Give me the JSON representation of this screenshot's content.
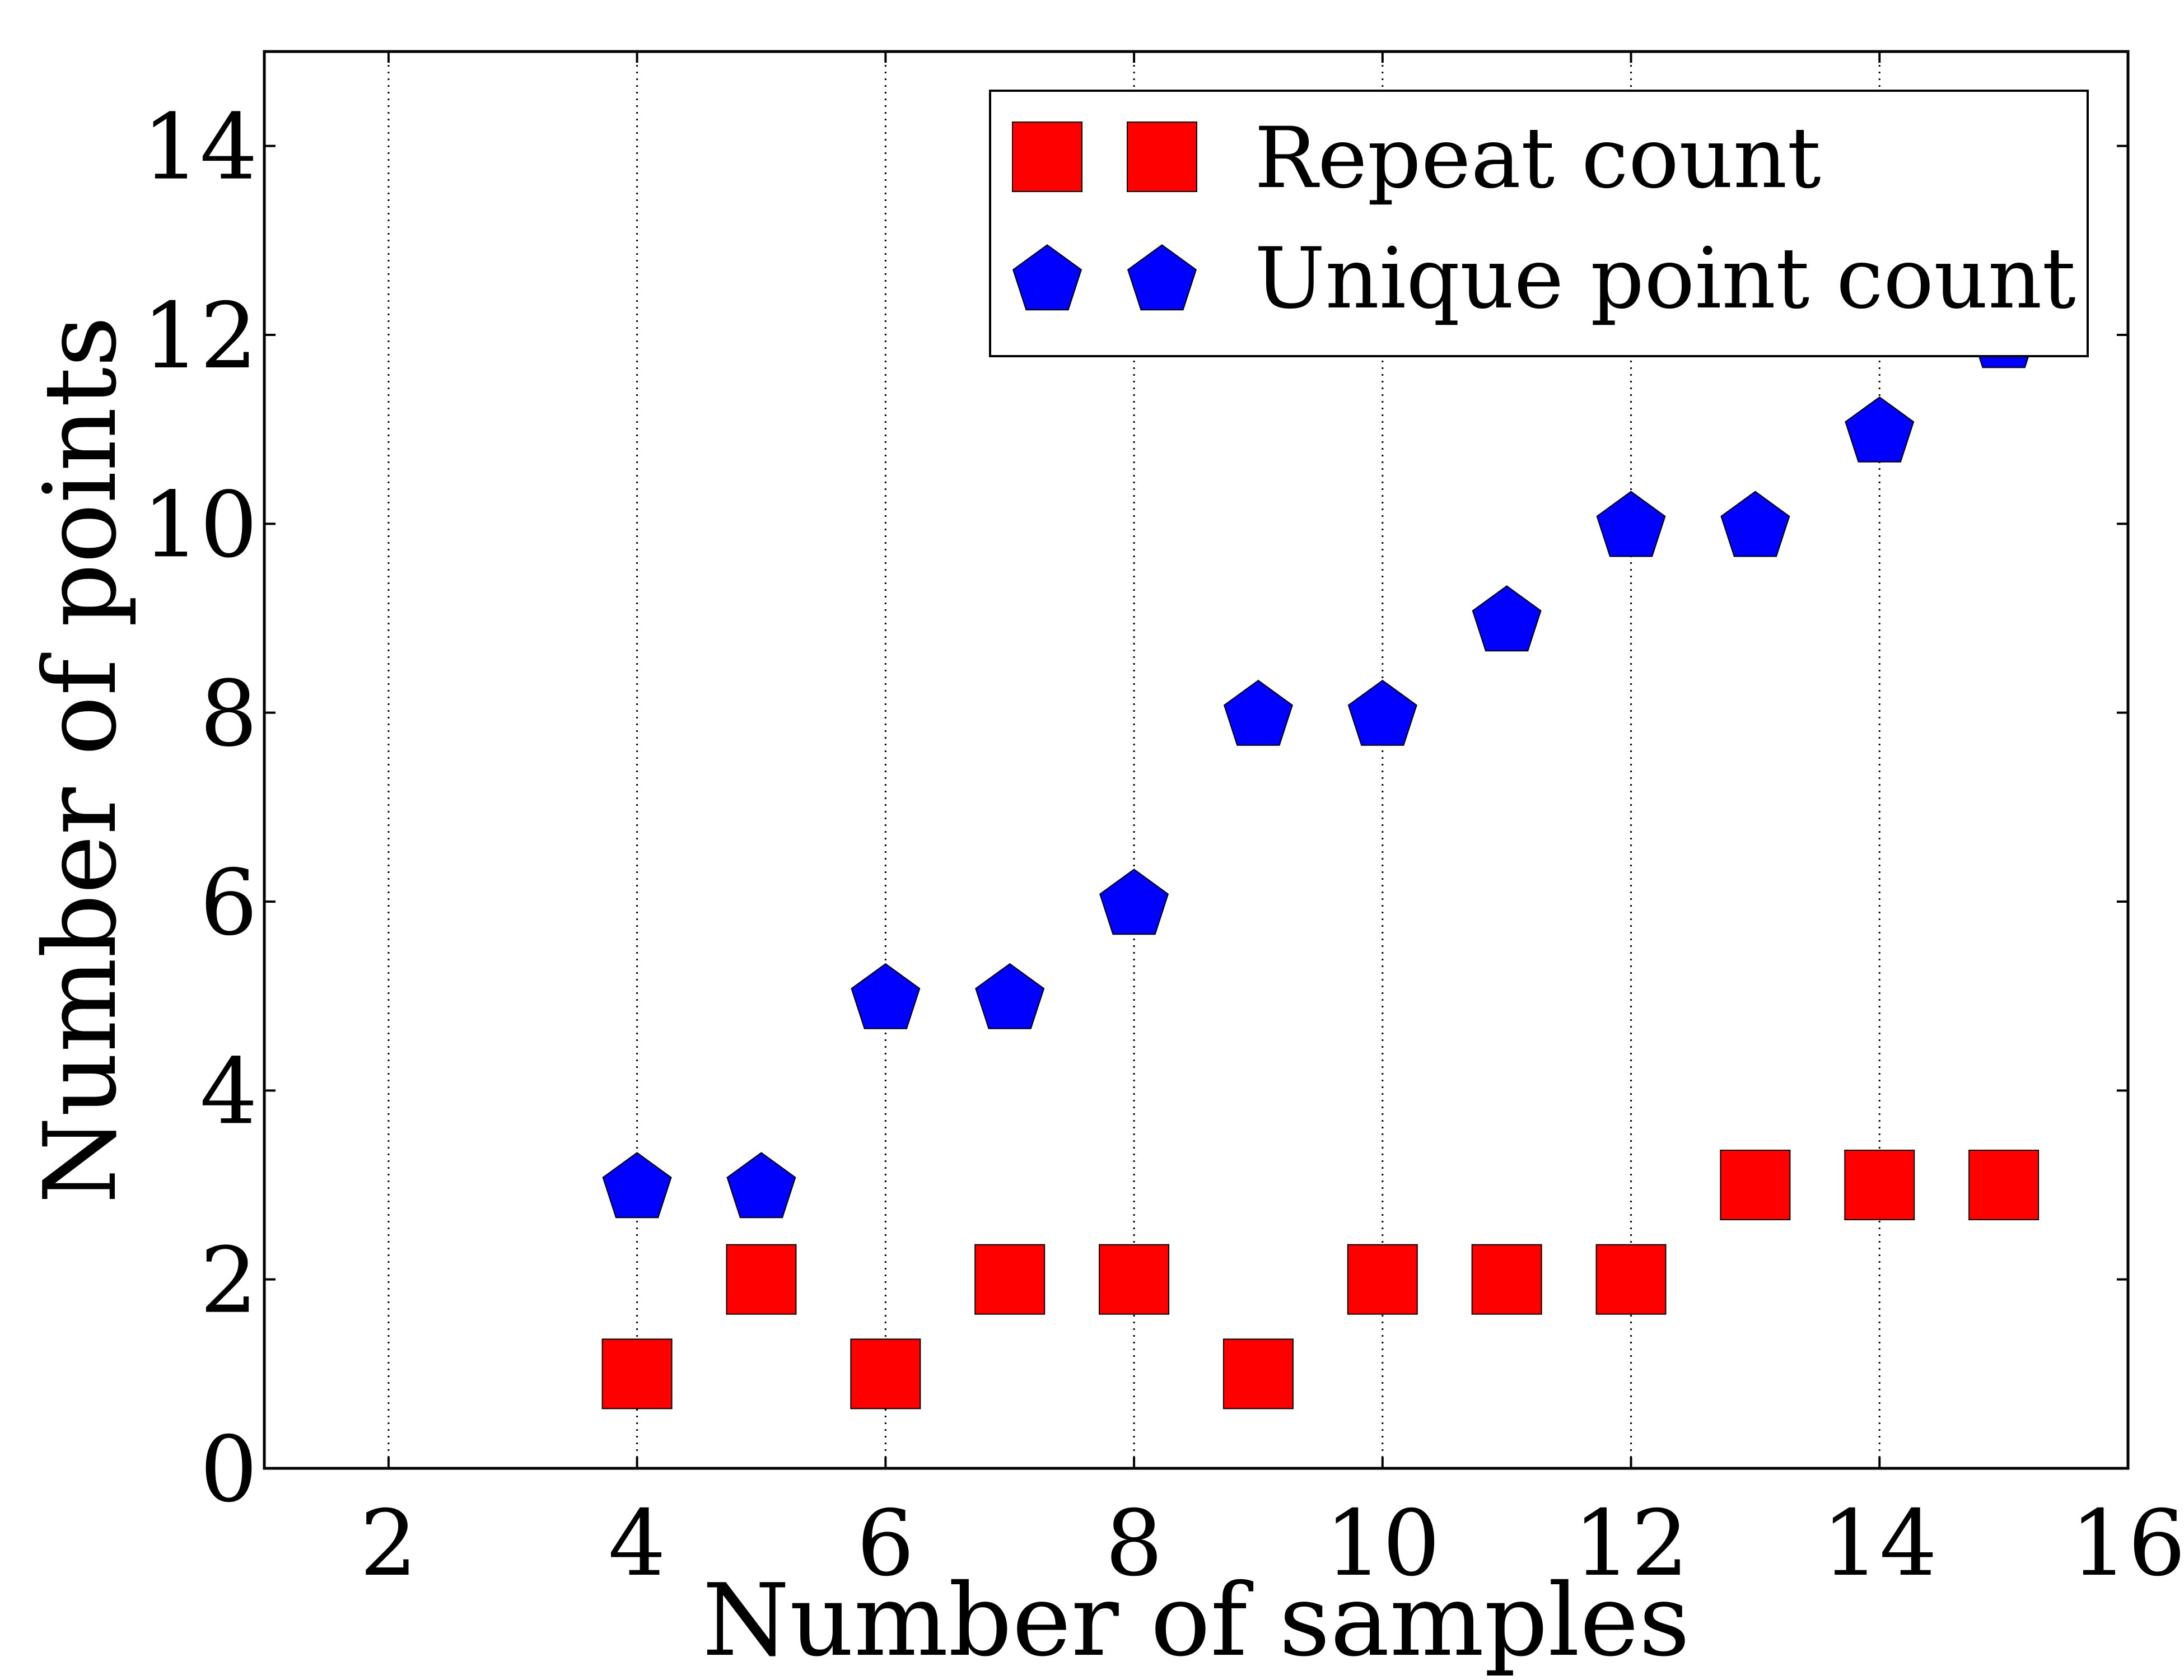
{
  "chart_data": {
    "type": "scatter",
    "title": "",
    "xlabel": "Number of samples",
    "ylabel": "Number of points",
    "xlim": [
      1,
      16
    ],
    "ylim": [
      0,
      15
    ],
    "x_ticks": [
      2,
      4,
      6,
      8,
      10,
      12,
      14,
      16
    ],
    "y_ticks": [
      0,
      2,
      4,
      6,
      8,
      10,
      12,
      14
    ],
    "x_tick_labels": [
      "2",
      "4",
      "6",
      "8",
      "10",
      "12",
      "14",
      "16"
    ],
    "y_tick_labels": [
      "0",
      "2",
      "4",
      "6",
      "8",
      "10",
      "12",
      "14"
    ],
    "grid": {
      "x": true,
      "y": false,
      "style": "dotted"
    },
    "legend": {
      "placement": "top-right"
    },
    "series": [
      {
        "name": "Repeat count",
        "marker": "square",
        "color": "#ff0000",
        "points": [
          {
            "x": 4,
            "y": 1
          },
          {
            "x": 5,
            "y": 2
          },
          {
            "x": 6,
            "y": 1
          },
          {
            "x": 7,
            "y": 2
          },
          {
            "x": 8,
            "y": 2
          },
          {
            "x": 9,
            "y": 1
          },
          {
            "x": 10,
            "y": 2
          },
          {
            "x": 11,
            "y": 2
          },
          {
            "x": 12,
            "y": 2
          },
          {
            "x": 13,
            "y": 3
          },
          {
            "x": 14,
            "y": 3
          },
          {
            "x": 15,
            "y": 3
          }
        ]
      },
      {
        "name": "Unique point count",
        "marker": "pentagon",
        "color": "#0000ff",
        "points": [
          {
            "x": 4,
            "y": 3
          },
          {
            "x": 5,
            "y": 3
          },
          {
            "x": 6,
            "y": 5
          },
          {
            "x": 7,
            "y": 5
          },
          {
            "x": 8,
            "y": 6
          },
          {
            "x": 9,
            "y": 8
          },
          {
            "x": 10,
            "y": 8
          },
          {
            "x": 11,
            "y": 9
          },
          {
            "x": 12,
            "y": 10
          },
          {
            "x": 13,
            "y": 10
          },
          {
            "x": 14,
            "y": 11
          },
          {
            "x": 15,
            "y": 12
          }
        ]
      }
    ]
  }
}
